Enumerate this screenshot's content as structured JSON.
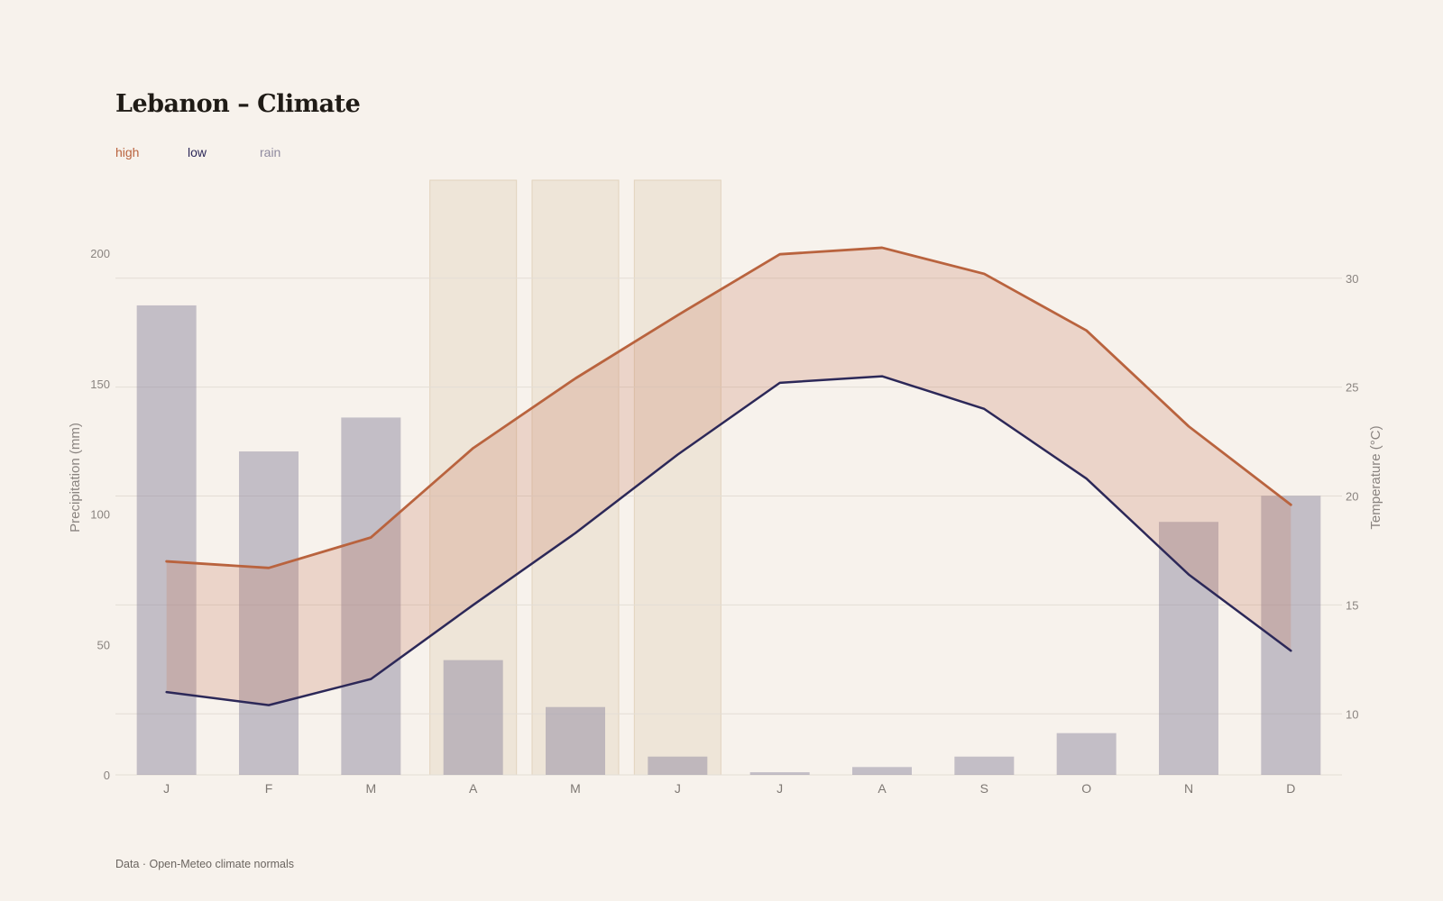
{
  "title": "Lebanon – Climate",
  "legend": {
    "high": "high",
    "low": "low",
    "rain": "rain"
  },
  "footer": "Data · Open-Meteo climate normals",
  "colors": {
    "background": "#f7f2ec",
    "high": "#b9633e",
    "low": "#2c2858",
    "rain": "#8f8a9f",
    "band_fill": "#c97a5e",
    "highlight": "#ebe0d1",
    "grid": "#e3ddd5"
  },
  "chart_data": {
    "type": "bar",
    "categories": [
      "J",
      "F",
      "M",
      "A",
      "M",
      "J",
      "J",
      "A",
      "S",
      "O",
      "N",
      "D"
    ],
    "series": [
      {
        "name": "rain",
        "type": "bar",
        "axis": "left",
        "values": [
          180,
          124,
          137,
          44,
          26,
          7,
          1,
          3,
          7,
          16,
          97,
          107
        ]
      },
      {
        "name": "high",
        "type": "line",
        "axis": "right",
        "values": [
          17.0,
          16.7,
          18.1,
          22.2,
          25.4,
          28.3,
          31.1,
          31.4,
          30.2,
          27.6,
          23.2,
          19.6
        ]
      },
      {
        "name": "low",
        "type": "line",
        "axis": "right",
        "values": [
          11.0,
          10.4,
          11.6,
          15.0,
          18.3,
          21.9,
          25.2,
          25.5,
          24.0,
          20.8,
          16.4,
          12.9
        ]
      }
    ],
    "highlighted_months": [
      3,
      4,
      5
    ],
    "ylabel_left": "Precipitation (mm)",
    "ylabel_right": "Temperature (°C)",
    "ylim_left": [
      0,
      200
    ],
    "yticks_left": [
      0,
      50,
      100,
      150,
      200
    ],
    "ylim_right": [
      10,
      30
    ],
    "yticks_right": [
      10,
      15,
      20,
      25,
      30
    ],
    "grid": true
  }
}
